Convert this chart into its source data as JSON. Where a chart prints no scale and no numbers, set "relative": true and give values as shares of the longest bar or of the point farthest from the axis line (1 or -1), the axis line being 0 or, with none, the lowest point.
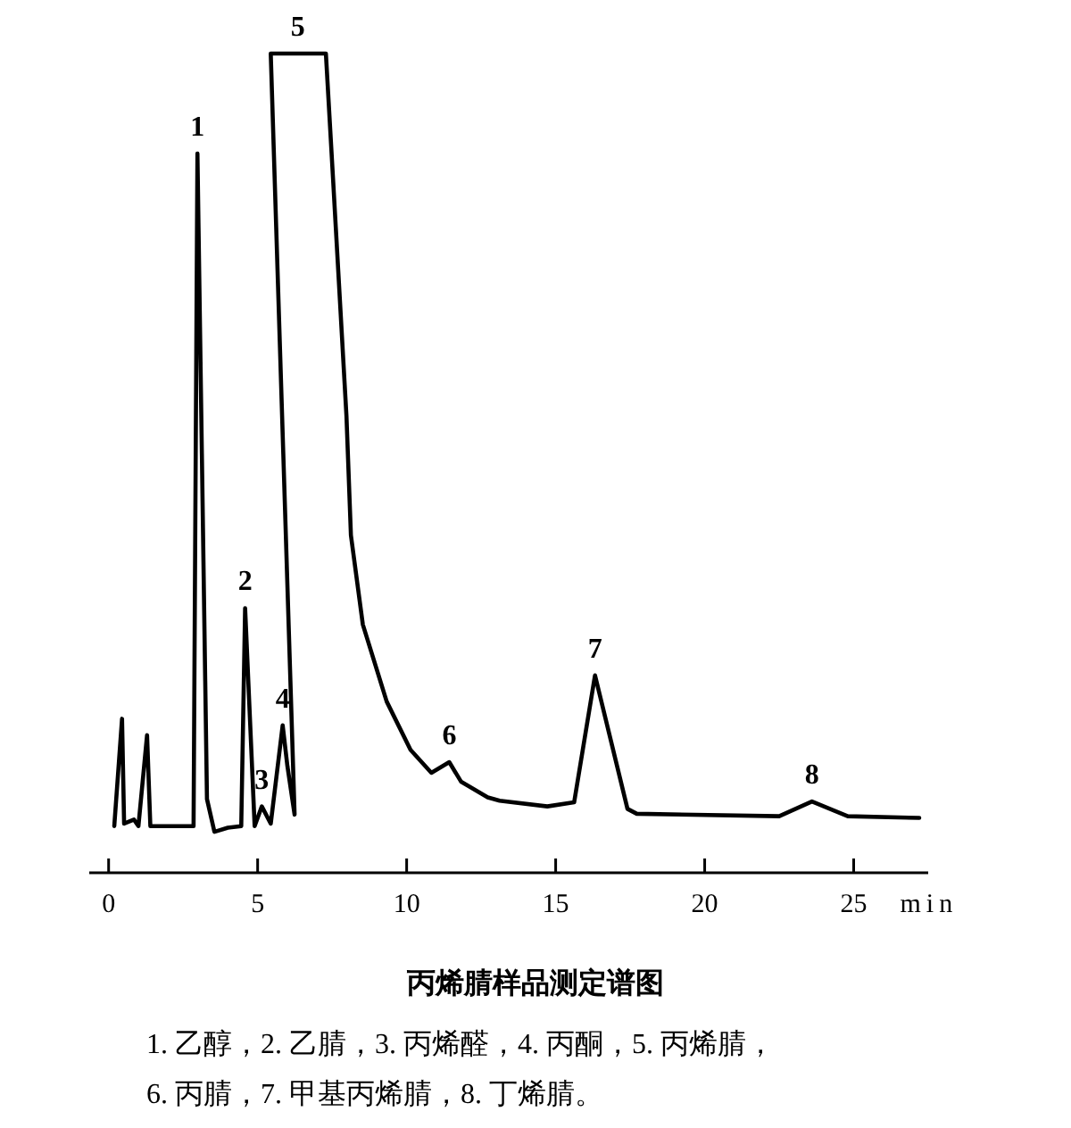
{
  "chart_data": {
    "type": "line",
    "relative": true,
    "title": "丙烯腈样品测定谱图",
    "xlabel": "min",
    "xlim": [
      -0.65,
      27.5
    ],
    "xticks": [
      0,
      5,
      10,
      15,
      20,
      25
    ],
    "tick_labels": "x",
    "grid": false,
    "marker": "none",
    "line_style": "solid",
    "series": [
      {
        "color": "#000000",
        "x": [
          0.19,
          0.45,
          0.52,
          0.85,
          1.0,
          1.29,
          1.4,
          2.85,
          2.98,
          3.3,
          3.55,
          4.0,
          4.45,
          4.58,
          4.9,
          5.14,
          5.44,
          5.84,
          6.0,
          6.24,
          5.44,
          7.29,
          7.53,
          7.98,
          8.13,
          8.53,
          9.33,
          10.13,
          10.83,
          11.43,
          11.83,
          12.72,
          13.12,
          14.72,
          15.62,
          16.32,
          17.41,
          17.72,
          22.5,
          23.6,
          24.8,
          27.2
        ],
        "values": [
          0.057,
          0.188,
          0.06,
          0.065,
          0.057,
          0.168,
          0.057,
          0.057,
          0.878,
          0.09,
          0.05,
          0.055,
          0.057,
          0.323,
          0.057,
          0.081,
          0.06,
          0.18,
          0.13,
          0.071,
          1.0,
          1.0,
          0.847,
          0.558,
          0.412,
          0.303,
          0.209,
          0.15,
          0.122,
          0.135,
          0.111,
          0.092,
          0.088,
          0.081,
          0.086,
          0.241,
          0.078,
          0.072,
          0.069,
          0.087,
          0.069,
          0.067
        ]
      }
    ],
    "annotations": [
      {
        "text": "1",
        "x": 2.98,
        "y": 0.878
      },
      {
        "text": "2",
        "x": 4.58,
        "y": 0.323
      },
      {
        "text": "3",
        "x": 5.14,
        "y": 0.081
      },
      {
        "text": "4",
        "x": 5.84,
        "y": 0.18
      },
      {
        "text": "5",
        "x": 6.35,
        "y": 1.0
      },
      {
        "text": "6",
        "x": 11.43,
        "y": 0.135
      },
      {
        "text": "7",
        "x": 16.32,
        "y": 0.241
      },
      {
        "text": "8",
        "x": 23.6,
        "y": 0.087
      },
      "1. 乙醇，2. 乙腈，3. 丙烯醛，4. 丙酮，5. 丙烯腈，",
      "6. 丙腈，7. 甲基丙烯腈，8. 丁烯腈。"
    ]
  }
}
